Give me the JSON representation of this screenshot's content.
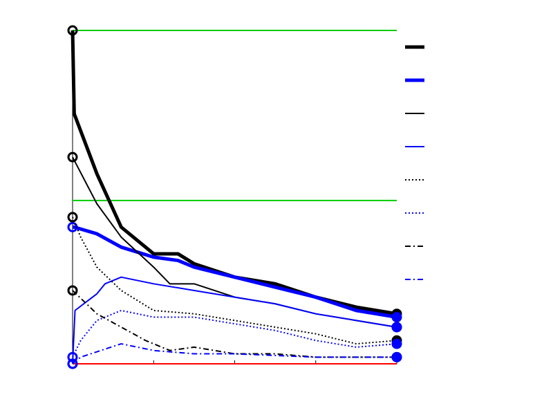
{
  "chart_data": {
    "type": "line",
    "xlim": [
      0,
      4
    ],
    "ylim": [
      0,
      1
    ],
    "xticks": [
      0,
      1,
      2,
      3,
      4
    ],
    "reference_lines": [
      {
        "value": 1,
        "color": "#00cc00"
      },
      {
        "value": 0.49,
        "color": "#00cc00"
      },
      {
        "value": 0,
        "color": "#ff0000"
      }
    ],
    "series": [
      {
        "color": "#000000",
        "width": 5,
        "dash": "none",
        "x": [
          0,
          0.02,
          0.3,
          0.6,
          1.0,
          1.3,
          1.5,
          2,
          2.5,
          3,
          3.5,
          4
        ],
        "values": [
          1.0,
          0.75,
          0.57,
          0.41,
          0.33,
          0.33,
          0.3,
          0.26,
          0.24,
          0.2,
          0.17,
          0.15
        ]
      },
      {
        "color": "#0000ff",
        "width": 5,
        "dash": "none",
        "x": [
          0,
          0.02,
          0.3,
          0.6,
          1.0,
          1.3,
          1.5,
          2,
          2.5,
          3,
          3.5,
          4
        ],
        "values": [
          0.41,
          0.41,
          0.39,
          0.35,
          0.32,
          0.31,
          0.29,
          0.26,
          0.23,
          0.2,
          0.16,
          0.14
        ]
      },
      {
        "color": "#000000",
        "width": 2,
        "dash": "none",
        "x": [
          0,
          0.3,
          0.6,
          1.0,
          1.2,
          1.5,
          2,
          2.5,
          3,
          3.5,
          4
        ],
        "values": [
          0.62,
          0.48,
          0.38,
          0.29,
          0.24,
          0.24,
          0.2,
          0.18,
          0.15,
          0.13,
          0.11
        ]
      },
      {
        "color": "#0000ff",
        "width": 2,
        "dash": "none",
        "x": [
          0,
          0.03,
          0.3,
          0.4,
          0.6,
          1.0,
          1.5,
          2,
          2.5,
          3,
          3.5,
          4
        ],
        "values": [
          0,
          0.16,
          0.21,
          0.24,
          0.26,
          0.24,
          0.22,
          0.2,
          0.18,
          0.15,
          0.13,
          0.11
        ]
      },
      {
        "color": "#000000",
        "width": 2,
        "dash": "2 3",
        "x": [
          0,
          0.1,
          0.3,
          0.6,
          1,
          1.5,
          2,
          2.5,
          3,
          3.5,
          4
        ],
        "values": [
          0.44,
          0.38,
          0.29,
          0.22,
          0.16,
          0.15,
          0.13,
          0.11,
          0.09,
          0.06,
          0.07
        ]
      },
      {
        "color": "#0000ff",
        "width": 2,
        "dash": "2 3",
        "x": [
          0,
          0.1,
          0.3,
          0.6,
          1,
          1.5,
          2,
          2.5,
          3,
          3.5,
          4
        ],
        "values": [
          0.02,
          0.07,
          0.13,
          0.16,
          0.14,
          0.14,
          0.12,
          0.1,
          0.07,
          0.05,
          0.06
        ]
      },
      {
        "color": "#000000",
        "width": 2,
        "dash": "8 4 2 4",
        "x": [
          0,
          0.3,
          0.6,
          0.9,
          1.2,
          1.5,
          2,
          2.5,
          3,
          3.5,
          4
        ],
        "values": [
          0.22,
          0.15,
          0.11,
          0.07,
          0.04,
          0.05,
          0.03,
          0.03,
          0.02,
          0.02,
          0.02
        ]
      },
      {
        "color": "#0000ff",
        "width": 2,
        "dash": "8 4 2 4",
        "x": [
          0,
          0.1,
          0.6,
          1.0,
          1.5,
          2,
          3,
          4
        ],
        "values": [
          0,
          0.02,
          0.06,
          0.04,
          0.03,
          0.03,
          0.02,
          0.02
        ]
      }
    ]
  }
}
